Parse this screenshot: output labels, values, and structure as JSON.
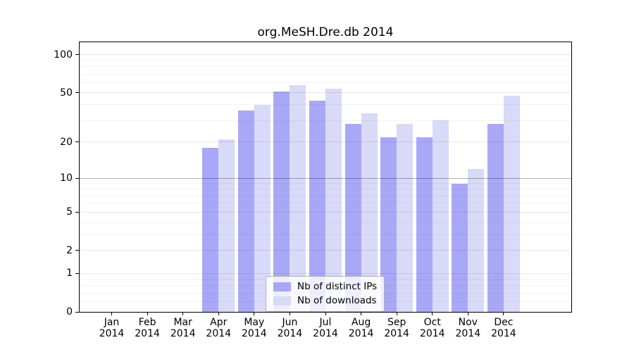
{
  "chart_data": {
    "type": "bar",
    "title": "org.MeSH.Dre.db 2014",
    "categories": [
      "Jan 2014",
      "Feb 2014",
      "Mar 2014",
      "Apr 2014",
      "May 2014",
      "Jun 2014",
      "Jul 2014",
      "Aug 2014",
      "Sep 2014",
      "Oct 2014",
      "Nov 2014",
      "Dec 2014"
    ],
    "series": [
      {
        "name": "Nb of distinct IPs",
        "color": "#a8a8f7",
        "values": [
          0,
          0,
          0,
          18,
          36,
          51,
          43,
          28,
          22,
          22,
          9,
          28
        ]
      },
      {
        "name": "Nb of downloads",
        "color": "#d9d9f8",
        "values": [
          0,
          0,
          0,
          21,
          40,
          57,
          54,
          34,
          28,
          30,
          12,
          47
        ]
      }
    ],
    "xlabel": "",
    "ylabel": "",
    "yscale": "log1p",
    "ylim": [
      0,
      125
    ],
    "yticks": [
      100,
      50,
      20,
      10,
      5,
      2,
      1,
      0
    ],
    "minor_yticks": [
      0.2,
      0.4,
      0.6,
      0.8,
      3,
      4,
      6,
      7,
      8,
      9,
      30,
      40,
      60,
      70,
      80,
      90
    ],
    "emphasis_gridline": 10,
    "grid": true,
    "legend_position": "lower center",
    "background_color": "#ffffff",
    "spine_color": "#000000"
  }
}
